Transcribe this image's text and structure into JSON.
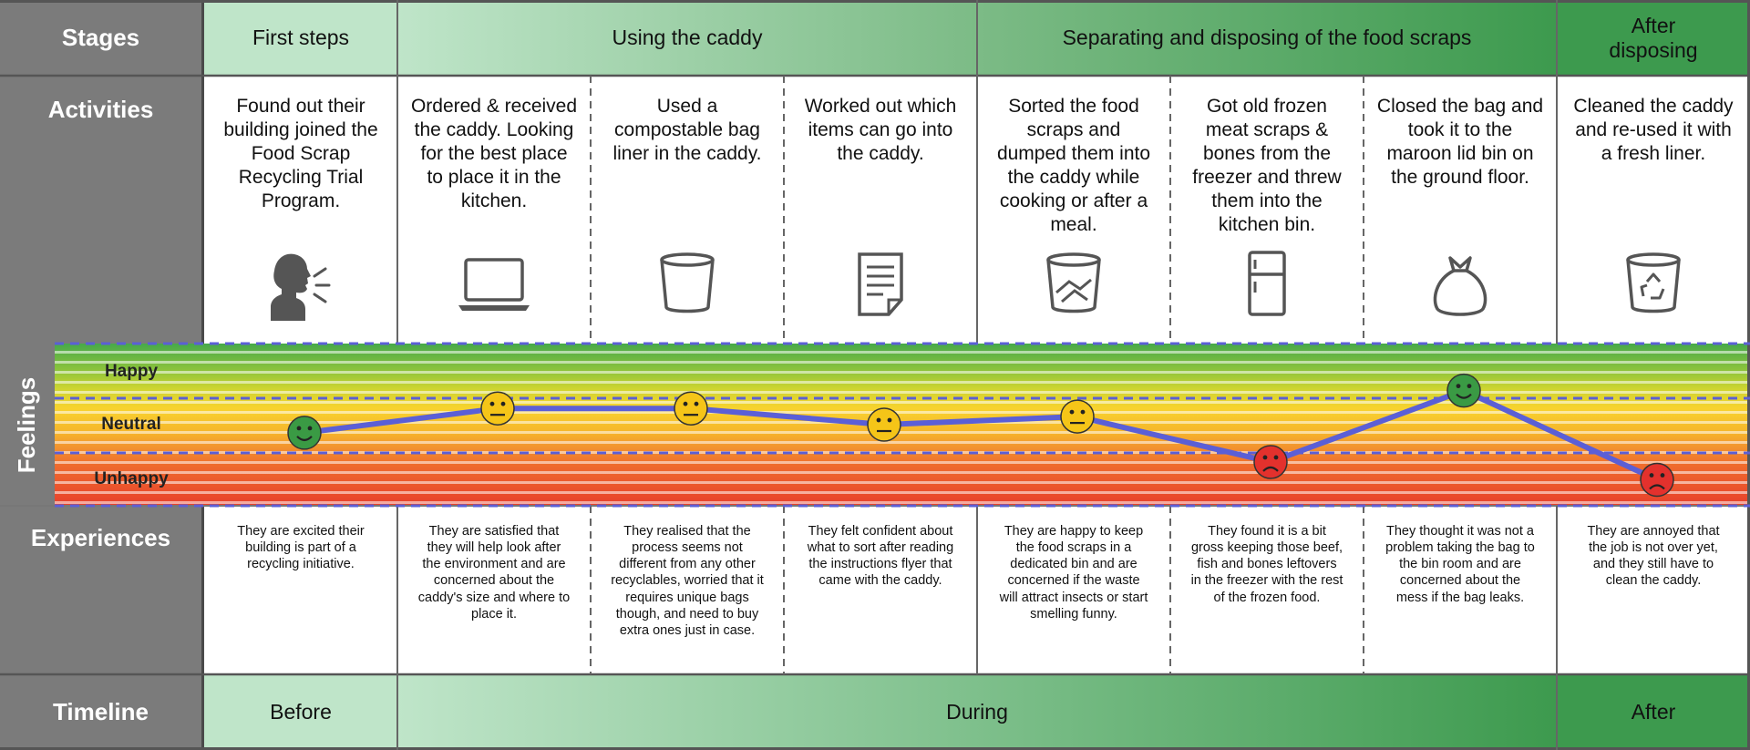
{
  "row_labels": {
    "stages": "Stages",
    "activities": "Activities",
    "feelings": "Feelings",
    "experiences": "Experiences",
    "timeline": "Timeline"
  },
  "stages": [
    "First steps",
    "Using the caddy",
    "Separating and disposing of the food scraps",
    "After disposing"
  ],
  "columns": [
    {
      "activity": "Found out their building joined the Food Scrap Recycling Trial Program.",
      "icon": "speaking-person-icon",
      "feeling": "Happy",
      "level": 0.45,
      "experience": "They are excited their building is part of a recycling initiative."
    },
    {
      "activity": "Ordered & received the caddy. Looking for the best place to place it in the kitchen.",
      "icon": "laptop-icon",
      "feeling": "Neutral",
      "level": 0.6,
      "experience": "They are satisfied that they will help look after the environment and are concerned about the caddy's size and where to place it."
    },
    {
      "activity": "Used a compostable bag liner in the caddy.",
      "icon": "bin-liner-icon",
      "feeling": "Neutral",
      "level": 0.6,
      "experience": "They realised that the process seems not different from any other recyclables, worried that it requires unique bags though, and need to buy extra ones just in case."
    },
    {
      "activity": "Worked out which items can go into the caddy.",
      "icon": "document-icon",
      "feeling": "Neutral",
      "level": 0.5,
      "experience": "They felt confident about what to sort after reading the instructions flyer that came with the caddy."
    },
    {
      "activity": "Sorted the food scraps and dumped them into the caddy while cooking or after a meal.",
      "icon": "caddy-with-scraps-icon",
      "feeling": "Neutral",
      "level": 0.55,
      "experience": "They are happy to keep the food scraps in a dedicated bin and are concerned if the waste will attract insects or start smelling funny."
    },
    {
      "activity": "Got old frozen meat scraps & bones from the freezer and threw them into the kitchen bin.",
      "icon": "fridge-icon",
      "feeling": "Unhappy",
      "level": 0.27,
      "experience": "They found it is a bit gross keeping those beef, fish and bones leftovers in the freezer with the rest of the frozen food."
    },
    {
      "activity": "Closed the bag and took it to the maroon lid bin on the ground floor.",
      "icon": "tied-bag-icon",
      "feeling": "Happy",
      "level": 0.71,
      "experience": "They thought it was not a problem taking the bag to the bin room and are concerned about the mess if the bag leaks."
    },
    {
      "activity": "Cleaned the caddy and re-used it with a fresh liner.",
      "icon": "recycle-bin-icon",
      "feeling": "Unhappy",
      "level": 0.16,
      "experience": "They are annoyed that the job is not over yet, and they still have to clean the caddy."
    }
  ],
  "feeling_levels": [
    "Happy",
    "Neutral",
    "Unhappy"
  ],
  "timeline": [
    "Before",
    "During",
    "After"
  ],
  "colors": {
    "header_grey": "#7b7b7b",
    "line": "#5b5fd6",
    "happy": "#3a9a44",
    "neutral": "#f5c518",
    "unhappy": "#e3312d"
  }
}
